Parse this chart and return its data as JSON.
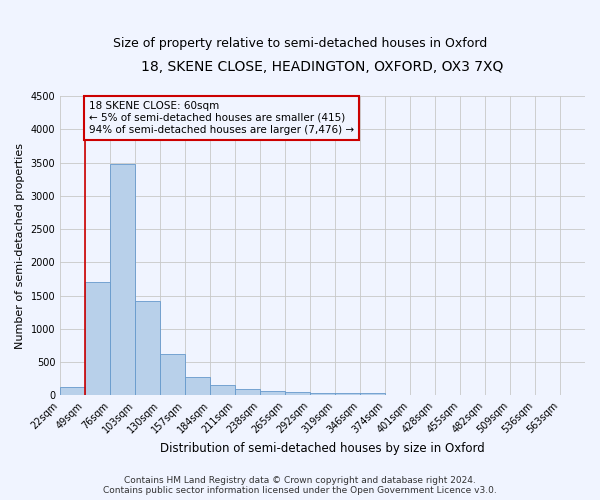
{
  "title": "18, SKENE CLOSE, HEADINGTON, OXFORD, OX3 7XQ",
  "subtitle": "Size of property relative to semi-detached houses in Oxford",
  "xlabel": "Distribution of semi-detached houses by size in Oxford",
  "ylabel": "Number of semi-detached properties",
  "categories": [
    "22sqm",
    "49sqm",
    "76sqm",
    "103sqm",
    "130sqm",
    "157sqm",
    "184sqm",
    "211sqm",
    "238sqm",
    "265sqm",
    "292sqm",
    "319sqm",
    "346sqm",
    "374sqm",
    "401sqm",
    "428sqm",
    "455sqm",
    "482sqm",
    "509sqm",
    "536sqm",
    "563sqm"
  ],
  "values": [
    130,
    1700,
    3480,
    1420,
    620,
    280,
    160,
    90,
    60,
    50,
    40,
    35,
    30,
    5,
    3,
    2,
    1,
    1,
    1,
    0,
    0
  ],
  "bar_color": "#b8d0ea",
  "bar_edge_color": "#6699cc",
  "bar_edge_width": 0.6,
  "grid_color": "#c8c8c8",
  "background_color": "#f0f4ff",
  "annotation_text": "18 SKENE CLOSE: 60sqm\n← 5% of semi-detached houses are smaller (415)\n94% of semi-detached houses are larger (7,476) →",
  "annotation_box_color": "#cc0000",
  "red_line_color": "#cc0000",
  "ylim": [
    0,
    4500
  ],
  "yticks": [
    0,
    500,
    1000,
    1500,
    2000,
    2500,
    3000,
    3500,
    4000,
    4500
  ],
  "title_fontsize": 10,
  "subtitle_fontsize": 9,
  "xlabel_fontsize": 8.5,
  "ylabel_fontsize": 8,
  "tick_fontsize": 7,
  "annot_fontsize": 7.5,
  "footer_fontsize": 6.5,
  "footer": "Contains HM Land Registry data © Crown copyright and database right 2024.\nContains public sector information licensed under the Open Government Licence v3.0."
}
